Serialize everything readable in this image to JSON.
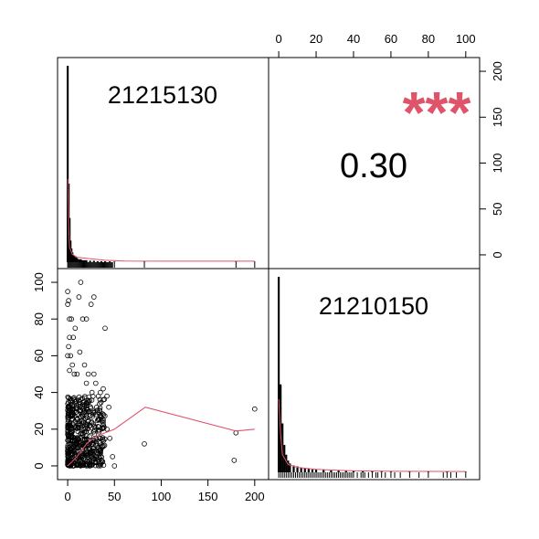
{
  "chart_data": {
    "type": "scatter",
    "description_type": "pairs-correlation-matrix",
    "variables": [
      "21215130",
      "21210150"
    ],
    "correlation": {
      "label": "0.30",
      "value": 0.3,
      "significance": "***"
    },
    "colors": {
      "frame": "#000000",
      "smooth": "#DF536B",
      "stars": "#DF536B",
      "points": "#000000"
    },
    "axes": {
      "bottom": {
        "ticks": [
          0,
          50,
          100,
          150,
          200
        ],
        "range": [
          -4,
          208
        ]
      },
      "left": {
        "ticks": [
          0,
          20,
          40,
          60,
          80,
          100
        ],
        "range": [
          -4,
          104
        ]
      },
      "top": {
        "ticks": [
          0,
          20,
          40,
          60,
          80,
          100
        ],
        "range": [
          -2,
          104
        ]
      },
      "right": {
        "ticks": [
          0,
          50,
          100,
          150,
          200
        ],
        "range": [
          -8,
          208
        ]
      }
    },
    "scatter": {
      "x_variable": "21215130",
      "y_variable": "21210150",
      "points": [
        [
          0,
          95
        ],
        [
          1,
          90
        ],
        [
          0,
          88
        ],
        [
          2,
          80
        ],
        [
          4,
          80
        ],
        [
          8,
          75
        ],
        [
          12,
          92
        ],
        [
          14,
          100
        ],
        [
          6,
          70
        ],
        [
          2,
          70
        ],
        [
          1,
          65
        ],
        [
          3,
          60
        ],
        [
          0,
          60
        ],
        [
          5,
          55
        ],
        [
          2,
          52
        ],
        [
          7,
          50
        ],
        [
          10,
          50
        ],
        [
          13,
          62
        ],
        [
          16,
          80
        ],
        [
          20,
          80
        ],
        [
          28,
          92
        ],
        [
          40,
          75
        ],
        [
          25,
          88
        ],
        [
          18,
          55
        ],
        [
          22,
          50
        ],
        [
          28,
          50
        ],
        [
          30,
          45
        ],
        [
          35,
          40
        ],
        [
          38,
          42
        ],
        [
          42,
          38
        ],
        [
          26,
          40
        ],
        [
          31,
          32
        ],
        [
          20,
          45
        ],
        [
          45,
          15
        ],
        [
          48,
          5
        ],
        [
          50,
          0
        ],
        [
          82,
          12
        ],
        [
          180,
          18
        ],
        [
          178,
          3
        ],
        [
          200,
          31
        ],
        [
          42,
          20
        ],
        [
          38,
          25
        ],
        [
          35,
          15
        ],
        [
          32,
          10
        ],
        [
          44,
          32
        ],
        [
          30,
          28
        ]
      ],
      "dense_region": {
        "x": [
          0,
          40
        ],
        "y": [
          0,
          38
        ]
      },
      "smooth_line": {
        "x": [
          0,
          10,
          20,
          30,
          40,
          50,
          83,
          180,
          200
        ],
        "y": [
          0,
          5,
          12,
          16,
          18,
          20,
          32,
          19,
          20
        ]
      }
    },
    "histogram_x": {
      "variable": "21215130",
      "bars": [
        [
          0,
          200
        ],
        [
          1,
          80
        ],
        [
          2,
          45
        ],
        [
          3,
          22
        ],
        [
          4,
          14
        ],
        [
          5,
          10
        ],
        [
          6,
          7
        ],
        [
          7,
          6
        ],
        [
          8,
          5
        ],
        [
          9,
          5
        ],
        [
          10,
          4
        ],
        [
          12,
          3
        ],
        [
          14,
          3
        ],
        [
          16,
          2
        ],
        [
          18,
          2
        ],
        [
          20,
          2
        ],
        [
          24,
          1.5
        ],
        [
          28,
          1.5
        ],
        [
          32,
          1
        ],
        [
          36,
          1
        ],
        [
          40,
          1
        ],
        [
          45,
          0.8
        ],
        [
          50,
          0.6
        ],
        [
          82,
          0.4
        ],
        [
          180,
          0.4
        ],
        [
          200,
          0.4
        ]
      ],
      "density": [
        [
          0,
          85
        ],
        [
          1,
          40
        ],
        [
          2,
          15
        ],
        [
          5,
          8
        ],
        [
          10,
          5
        ],
        [
          20,
          4
        ],
        [
          40,
          2
        ],
        [
          60,
          1.2
        ],
        [
          100,
          1
        ],
        [
          150,
          1
        ],
        [
          200,
          1
        ]
      ],
      "rug": [
        0,
        1,
        2,
        3,
        4,
        5,
        6,
        7,
        8,
        9,
        10,
        11,
        12,
        13,
        14,
        15,
        16,
        17,
        18,
        19,
        20,
        21,
        22,
        23,
        24,
        25,
        26,
        27,
        28,
        29,
        30,
        31,
        32,
        33,
        34,
        35,
        36,
        37,
        38,
        39,
        40,
        41,
        42,
        43,
        44,
        45,
        46,
        47,
        48,
        50,
        82,
        180,
        200
      ]
    },
    "histogram_y": {
      "variable": "21210150",
      "bars": [
        [
          0,
          200
        ],
        [
          1,
          90
        ],
        [
          2,
          50
        ],
        [
          3,
          28
        ],
        [
          4,
          18
        ],
        [
          5,
          12
        ],
        [
          6,
          9
        ],
        [
          8,
          7
        ],
        [
          10,
          6
        ],
        [
          12,
          5
        ],
        [
          14,
          4
        ],
        [
          16,
          3.5
        ],
        [
          18,
          3
        ],
        [
          20,
          3
        ],
        [
          24,
          2.5
        ],
        [
          28,
          2
        ],
        [
          32,
          2
        ],
        [
          36,
          1.5
        ],
        [
          40,
          1.5
        ],
        [
          45,
          1
        ],
        [
          50,
          1
        ],
        [
          55,
          0.8
        ],
        [
          60,
          0.8
        ],
        [
          70,
          0.6
        ],
        [
          80,
          0.6
        ],
        [
          90,
          0.5
        ],
        [
          100,
          0.5
        ]
      ],
      "density": [
        [
          0,
          75
        ],
        [
          1,
          40
        ],
        [
          2,
          18
        ],
        [
          5,
          8
        ],
        [
          10,
          5
        ],
        [
          20,
          3
        ],
        [
          40,
          1.5
        ],
        [
          60,
          1
        ],
        [
          100,
          0.8
        ]
      ],
      "rug": [
        0,
        1,
        2,
        3,
        4,
        5,
        6,
        7,
        8,
        9,
        10,
        11,
        12,
        13,
        14,
        15,
        16,
        17,
        18,
        19,
        20,
        21,
        22,
        23,
        24,
        25,
        26,
        27,
        28,
        29,
        30,
        31,
        32,
        33,
        34,
        35,
        36,
        37,
        38,
        39,
        40,
        42,
        44,
        45,
        46,
        48,
        50,
        52,
        53,
        55,
        57,
        60,
        62,
        65,
        70,
        75,
        80,
        88,
        90,
        92,
        95,
        100
      ]
    }
  }
}
